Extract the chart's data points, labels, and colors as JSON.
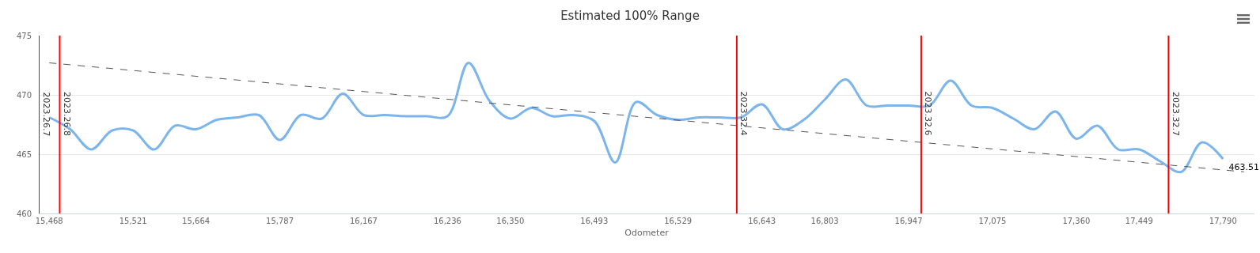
{
  "chart_data": {
    "type": "line",
    "title": "Estimated 100% Range",
    "xlabel": "Odometer",
    "categories": [
      "15,468",
      null,
      null,
      null,
      "15,521",
      null,
      null,
      "15,664",
      null,
      null,
      null,
      "15,787",
      null,
      null,
      null,
      "16,167",
      null,
      null,
      null,
      "16,236",
      null,
      null,
      "16,350",
      null,
      null,
      null,
      "16,493",
      null,
      null,
      null,
      "16,529",
      null,
      null,
      null,
      "16,643",
      null,
      null,
      "16,803",
      null,
      null,
      null,
      "16,947",
      null,
      null,
      null,
      "17,075",
      null,
      null,
      null,
      "17,360",
      null,
      null,
      "17,449",
      null,
      null,
      null,
      "17,790",
      null
    ],
    "series": [
      {
        "color": "#7cb5ec",
        "line_style": "solid",
        "values": [
          468.1,
          467.1,
          465.4,
          467.0,
          467.0,
          465.4,
          467.4,
          467.1,
          467.9,
          468.1,
          468.3,
          466.2,
          468.3,
          468.0,
          470.1,
          468.3,
          468.3,
          468.2,
          468.2,
          468.2,
          472.7,
          469.5,
          468.0,
          468.9,
          468.2,
          468.3,
          467.8,
          464.3,
          469.4,
          468.3,
          467.9,
          468.1,
          468.1,
          468.1,
          469.2,
          467.1,
          467.9,
          469.6,
          471.3,
          469.1,
          469.1,
          469.1,
          469.1,
          471.2,
          469.1,
          468.9,
          468.0,
          467.1,
          468.6,
          466.3,
          467.4,
          465.4,
          465.4,
          464.4,
          463.5,
          466.0,
          464.6,
          null
        ]
      },
      {
        "color": "#555555",
        "line_style": "dashed",
        "values": [
          472.7,
          null,
          null,
          null,
          null,
          null,
          null,
          null,
          null,
          null,
          null,
          null,
          null,
          null,
          null,
          null,
          null,
          null,
          null,
          null,
          null,
          null,
          null,
          null,
          null,
          null,
          null,
          null,
          null,
          null,
          null,
          null,
          null,
          null,
          null,
          null,
          null,
          null,
          null,
          null,
          null,
          null,
          null,
          null,
          null,
          null,
          null,
          null,
          null,
          null,
          null,
          null,
          null,
          null,
          null,
          null,
          null,
          463.51
        ],
        "value_labels": [
          null,
          null,
          null,
          null,
          null,
          null,
          null,
          null,
          null,
          null,
          null,
          null,
          null,
          null,
          null,
          null,
          null,
          null,
          null,
          null,
          null,
          null,
          null,
          null,
          null,
          null,
          null,
          null,
          null,
          null,
          null,
          null,
          null,
          null,
          null,
          null,
          null,
          null,
          null,
          null,
          null,
          null,
          null,
          null,
          null,
          null,
          null,
          null,
          null,
          null,
          null,
          null,
          null,
          null,
          null,
          null,
          null,
          "463.51"
        ]
      }
    ],
    "ylim": [
      460,
      475
    ],
    "yticks": [
      460,
      465,
      470,
      475
    ],
    "grid": "y",
    "legend": false,
    "marker": "none",
    "annotations": [
      "2023.26.7",
      "2023.26.8",
      "2023.32.4",
      "2023.32.6",
      "2023.32.7"
    ]
  }
}
